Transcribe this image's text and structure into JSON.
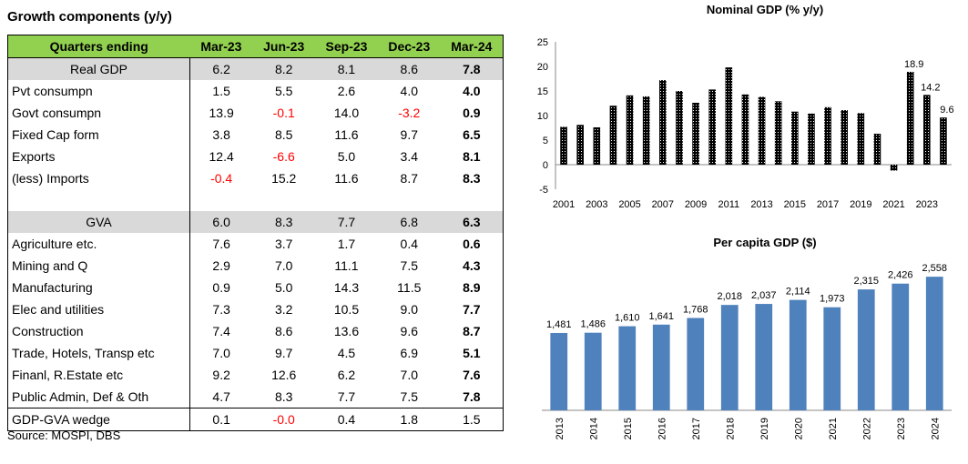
{
  "table": {
    "title": "Growth components (y/y)",
    "headers": [
      "Quarters ending",
      "Mar-23",
      "Jun-23",
      "Sep-23",
      "Dec-23",
      "Mar-24"
    ],
    "source": "Source: MOSPI, DBS",
    "colors": {
      "header_bg": "#92d050",
      "highlight_bg": "#d9d9d9",
      "negative": "#ff0000"
    }
  },
  "chart_data": [
    {
      "type": "table",
      "title": "Growth components (y/y)",
      "columns": [
        "Quarters ending",
        "Mar-23",
        "Jun-23",
        "Sep-23",
        "Dec-23",
        "Mar-24"
      ],
      "rows": [
        {
          "label": "Real GDP",
          "values": [
            "6.2",
            "8.2",
            "8.1",
            "8.6",
            "7.8"
          ],
          "highlight": true
        },
        {
          "label": "Pvt consumpn",
          "values": [
            "1.5",
            "5.5",
            "2.6",
            "4.0",
            "4.0"
          ]
        },
        {
          "label": "Govt consumpn",
          "values": [
            "13.9",
            "-0.1",
            "14.0",
            "-3.2",
            "0.9"
          ]
        },
        {
          "label": "Fixed Cap form",
          "values": [
            "3.8",
            "8.5",
            "11.6",
            "9.7",
            "6.5"
          ]
        },
        {
          "label": "Exports",
          "values": [
            "12.4",
            "-6.6",
            "5.0",
            "3.4",
            "8.1"
          ]
        },
        {
          "label": "(less) Imports",
          "values": [
            "-0.4",
            "15.2",
            "11.6",
            "8.7",
            "8.3"
          ]
        },
        {
          "label": "",
          "values": [
            "",
            "",
            "",
            "",
            ""
          ],
          "blank": true
        },
        {
          "label": "GVA",
          "values": [
            "6.0",
            "8.3",
            "7.7",
            "6.8",
            "6.3"
          ],
          "highlight": true
        },
        {
          "label": "Agriculture etc.",
          "values": [
            "7.6",
            "3.7",
            "1.7",
            "0.4",
            "0.6"
          ]
        },
        {
          "label": "Mining and Q",
          "values": [
            "2.9",
            "7.0",
            "11.1",
            "7.5",
            "4.3"
          ]
        },
        {
          "label": "Manufacturing",
          "values": [
            "0.9",
            "5.0",
            "14.3",
            "11.5",
            "8.9"
          ]
        },
        {
          "label": "Elec and utilities",
          "values": [
            "7.3",
            "3.2",
            "10.5",
            "9.0",
            "7.7"
          ]
        },
        {
          "label": "Construction",
          "values": [
            "7.4",
            "8.6",
            "13.6",
            "9.6",
            "8.7"
          ]
        },
        {
          "label": "Trade, Hotels, Transp etc",
          "values": [
            "7.0",
            "9.7",
            "4.5",
            "6.9",
            "5.1"
          ]
        },
        {
          "label": "Finanl, R.Estate etc",
          "values": [
            "9.2",
            "12.6",
            "6.2",
            "7.0",
            "7.6"
          ]
        },
        {
          "label": "Public Admin, Def & Oth",
          "values": [
            "4.7",
            "8.3",
            "7.7",
            "7.5",
            "7.8"
          ]
        },
        {
          "label": "GDP-GVA wedge",
          "values": [
            "0.1",
            "-0.0",
            "0.4",
            "1.8",
            "1.5"
          ],
          "wedge": true
        }
      ]
    },
    {
      "type": "bar",
      "title": "Nominal GDP (% y/y)",
      "years": [
        2001,
        2002,
        2003,
        2004,
        2005,
        2006,
        2007,
        2008,
        2009,
        2010,
        2011,
        2012,
        2013,
        2014,
        2015,
        2016,
        2017,
        2018,
        2019,
        2020,
        2021,
        2022,
        2023,
        2024
      ],
      "x_tick_labels": [
        "2001",
        "2003",
        "2005",
        "2007",
        "2009",
        "2011",
        "2013",
        "2015",
        "2017",
        "2019",
        "2021",
        "2023"
      ],
      "values": [
        7.7,
        8.1,
        7.6,
        12.0,
        14.1,
        13.9,
        17.2,
        15.0,
        12.6,
        15.3,
        19.8,
        14.3,
        13.8,
        12.9,
        10.8,
        10.4,
        11.7,
        11.1,
        10.5,
        6.3,
        -1.2,
        18.9,
        14.2,
        9.6
      ],
      "data_labels": {
        "2022": "18.9",
        "2023": "14.2",
        "2024": "9.6"
      },
      "ylim": [
        -5,
        25
      ],
      "yticks": [
        "-5",
        "0",
        "5",
        "10",
        "15",
        "20",
        "25"
      ],
      "bar_style": "black-dotted"
    },
    {
      "type": "bar",
      "title": "Per capita GDP ($)",
      "categories": [
        "2013",
        "2014",
        "2015",
        "2016",
        "2017",
        "2018",
        "2019",
        "2020",
        "2021",
        "2022",
        "2023",
        "2024"
      ],
      "values": [
        1481,
        1486,
        1610,
        1641,
        1768,
        2018,
        2037,
        2114,
        1973,
        2315,
        2426,
        2558
      ],
      "labels": [
        "1,481",
        "1,486",
        "1,610",
        "1,641",
        "1,768",
        "2,018",
        "2,037",
        "2,114",
        "1,973",
        "2,315",
        "2,426",
        "2,558"
      ],
      "bar_color": "#4f81bd",
      "grid": false
    }
  ]
}
